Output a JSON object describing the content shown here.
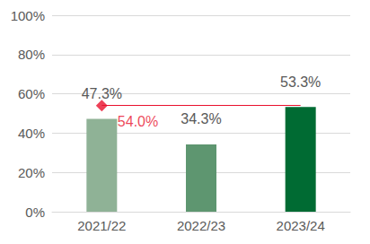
{
  "chart_data": {
    "type": "bar",
    "categories": [
      "2021/22",
      "2022/23",
      "2023/24"
    ],
    "values": [
      47.3,
      34.3,
      53.3
    ],
    "value_labels": [
      "47.3%",
      "34.3%",
      "53.3%"
    ],
    "colors": [
      "#8fb296",
      "#5e9670",
      "#006b33"
    ],
    "data_labels": true,
    "ylim": [
      0,
      100
    ],
    "yticks": [
      {
        "value": 0,
        "label": "0%"
      },
      {
        "value": 20,
        "label": "20%"
      },
      {
        "value": 40,
        "label": "40%"
      },
      {
        "value": 60,
        "label": "60%"
      },
      {
        "value": 80,
        "label": "80%"
      },
      {
        "value": 100,
        "label": "100%"
      }
    ],
    "grid": true,
    "target": {
      "value": 54.0,
      "label": "54.0%",
      "color": "#e8112d",
      "marker": "diamond"
    }
  }
}
